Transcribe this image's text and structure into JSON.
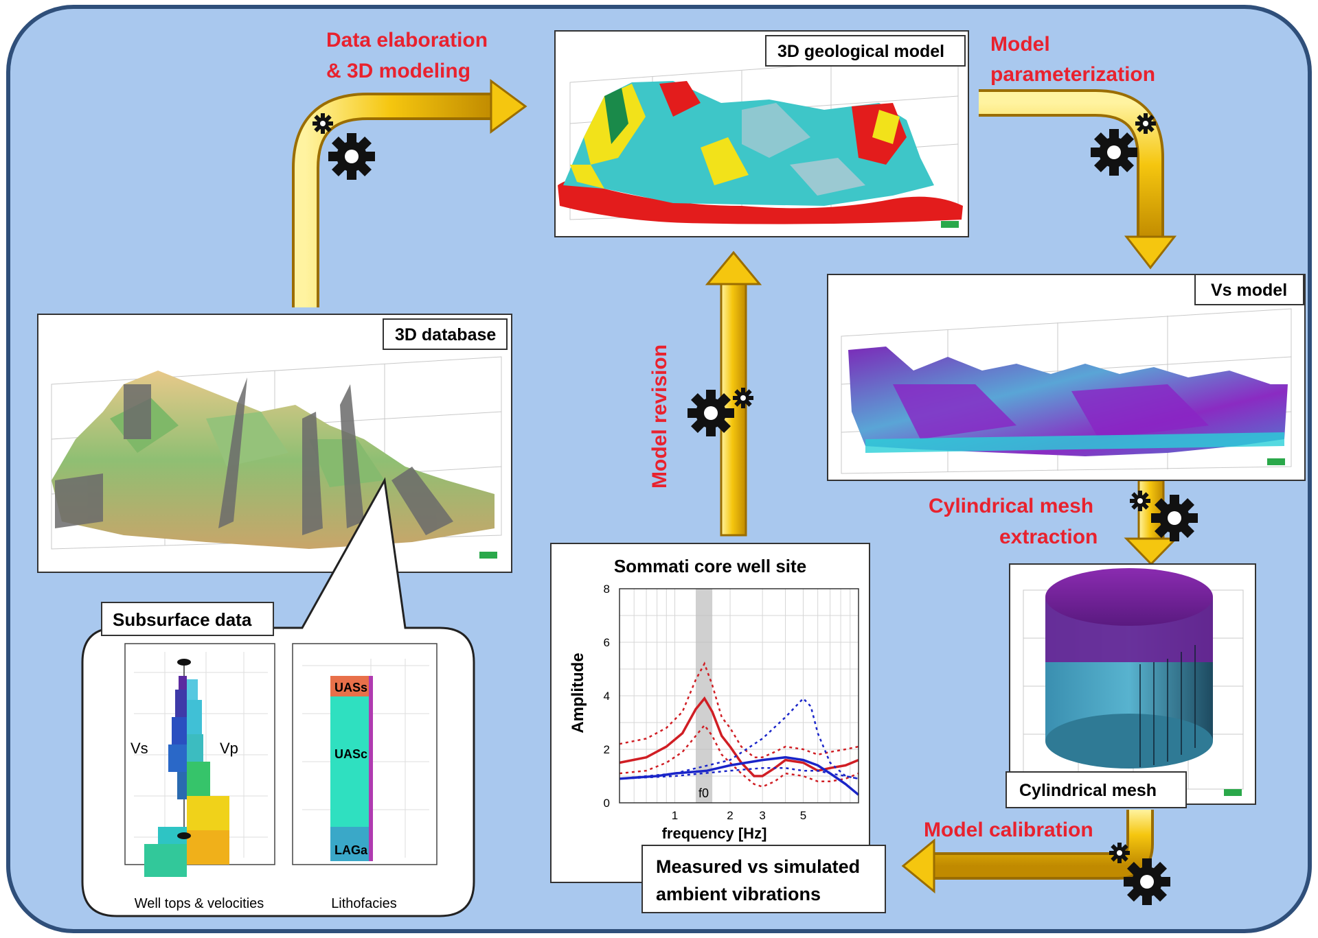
{
  "colors": {
    "background": "#a9c8ee",
    "flow_arrow": "#f2c20f",
    "step_label": "#e8222e",
    "gear": "#111111"
  },
  "steps": {
    "data_elaboration": [
      "Data elaboration",
      "& 3D modeling"
    ],
    "model_parameterization": [
      "Model",
      "parameterization"
    ],
    "model_revision": "Model revision",
    "cylindrical_mesh_extraction": [
      "Cylindrical mesh",
      "extraction"
    ],
    "model_calibration": "Model calibration"
  },
  "panels": {
    "database": "3D database",
    "geological_model": "3D geological model",
    "vs_model": "Vs model",
    "cylindrical_mesh": "Cylindrical mesh",
    "measured_vs_simulated": [
      "Measured vs simulated",
      "ambient vibrations"
    ]
  },
  "subsurface": {
    "title": "Subsurface data",
    "well_caption": "Well  tops  & velocities",
    "litho_caption": "Lithofacies",
    "vs_label": "Vs",
    "vp_label": "Vp",
    "facies": [
      "UASs",
      "UASc",
      "LAGa"
    ]
  },
  "chart_data": {
    "type": "line",
    "title": "Sommati core well site",
    "xlabel": "frequency [Hz]",
    "ylabel": "Amplitude",
    "x_scale": "log",
    "xlim": [
      0.5,
      10
    ],
    "ylim": [
      0,
      8
    ],
    "yticks": [
      0,
      2,
      4,
      6,
      8
    ],
    "xticks": [
      1,
      2,
      3,
      5
    ],
    "highlight_band": {
      "x": [
        1.3,
        1.6
      ],
      "label": "f0"
    },
    "grid": true,
    "series": [
      {
        "color": "#d01e24",
        "style": "solid",
        "x": [
          0.5,
          0.7,
          0.9,
          1.1,
          1.3,
          1.45,
          1.6,
          1.8,
          2.0,
          2.3,
          2.7,
          3.0,
          3.5,
          4.0,
          5.0,
          6.0,
          7.0,
          8.5,
          10
        ],
        "y": [
          1.5,
          1.7,
          2.1,
          2.6,
          3.5,
          3.9,
          3.4,
          2.5,
          2.1,
          1.5,
          1.0,
          1.0,
          1.3,
          1.6,
          1.5,
          1.2,
          1.3,
          1.4,
          1.6
        ]
      },
      {
        "color": "#d01e24",
        "style": "dotted",
        "x": [
          0.5,
          0.7,
          0.9,
          1.1,
          1.3,
          1.45,
          1.6,
          1.8,
          2.0,
          2.3,
          2.7,
          3.0,
          3.5,
          4.0,
          5.0,
          6.0,
          7.0,
          8.5,
          10
        ],
        "y": [
          2.2,
          2.4,
          2.8,
          3.4,
          4.6,
          5.2,
          4.4,
          3.2,
          2.8,
          2.1,
          1.7,
          1.7,
          1.9,
          2.1,
          2.0,
          1.8,
          1.9,
          2.0,
          2.1
        ]
      },
      {
        "color": "#d01e24",
        "style": "dotted",
        "x": [
          0.5,
          0.7,
          0.9,
          1.1,
          1.3,
          1.45,
          1.6,
          1.8,
          2.0,
          2.3,
          2.7,
          3.0,
          3.5,
          4.0,
          5.0,
          6.0,
          7.0,
          8.5,
          10
        ],
        "y": [
          1.1,
          1.2,
          1.5,
          1.9,
          2.5,
          2.9,
          2.5,
          1.8,
          1.5,
          1.1,
          0.7,
          0.6,
          0.8,
          1.1,
          1.0,
          0.8,
          0.8,
          0.9,
          1.1
        ]
      },
      {
        "color": "#1a25c8",
        "style": "solid",
        "x": [
          0.5,
          0.8,
          1.0,
          1.5,
          2.0,
          3.0,
          4.0,
          5.0,
          6.0,
          7.0,
          8.5,
          10
        ],
        "y": [
          0.9,
          1.0,
          1.1,
          1.2,
          1.4,
          1.6,
          1.7,
          1.6,
          1.4,
          1.1,
          0.7,
          0.3
        ]
      },
      {
        "color": "#1a25c8",
        "style": "dotted",
        "x": [
          0.5,
          1.0,
          2.0,
          3.0,
          4.0,
          5.0,
          5.5,
          6.0,
          7.0,
          8.5,
          10
        ],
        "y": [
          0.9,
          1.1,
          1.6,
          2.4,
          3.2,
          3.9,
          3.6,
          2.6,
          1.5,
          1.0,
          0.9
        ]
      },
      {
        "color": "#1a25c8",
        "style": "dotted",
        "x": [
          0.5,
          1.0,
          2.0,
          3.0,
          4.0,
          5.0,
          6.0,
          7.0,
          8.5,
          10
        ],
        "y": [
          0.9,
          1.0,
          1.2,
          1.3,
          1.3,
          1.2,
          1.2,
          1.1,
          1.0,
          0.9
        ]
      }
    ]
  }
}
